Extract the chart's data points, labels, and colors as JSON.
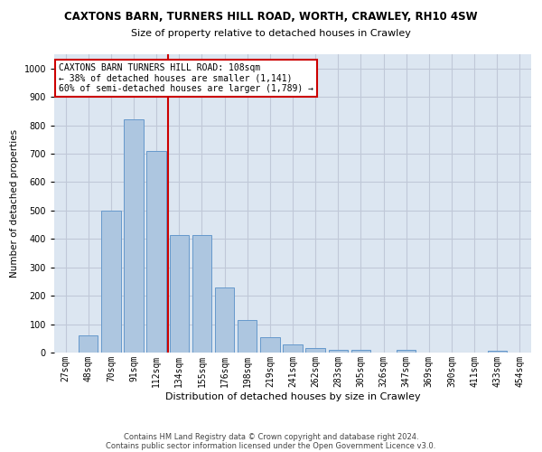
{
  "title": "CAXTONS BARN, TURNERS HILL ROAD, WORTH, CRAWLEY, RH10 4SW",
  "subtitle": "Size of property relative to detached houses in Crawley",
  "xlabel": "Distribution of detached houses by size in Crawley",
  "ylabel": "Number of detached properties",
  "footer1": "Contains HM Land Registry data © Crown copyright and database right 2024.",
  "footer2": "Contains public sector information licensed under the Open Government Licence v3.0.",
  "categories": [
    "27sqm",
    "48sqm",
    "70sqm",
    "91sqm",
    "112sqm",
    "134sqm",
    "155sqm",
    "176sqm",
    "198sqm",
    "219sqm",
    "241sqm",
    "262sqm",
    "283sqm",
    "305sqm",
    "326sqm",
    "347sqm",
    "369sqm",
    "390sqm",
    "411sqm",
    "433sqm",
    "454sqm"
  ],
  "values": [
    0,
    60,
    500,
    820,
    710,
    415,
    415,
    230,
    115,
    55,
    30,
    15,
    10,
    10,
    0,
    10,
    0,
    0,
    0,
    5,
    0
  ],
  "bar_color": "#adc6e0",
  "bar_edge_color": "#6699cc",
  "vline_x": 4.5,
  "vline_color": "#cc0000",
  "annotation_text": "CAXTONS BARN TURNERS HILL ROAD: 108sqm\n← 38% of detached houses are smaller (1,141)\n60% of semi-detached houses are larger (1,789) →",
  "annotation_box_color": "#ffffff",
  "annotation_box_edge": "#cc0000",
  "ylim": [
    0,
    1050
  ],
  "yticks": [
    0,
    100,
    200,
    300,
    400,
    500,
    600,
    700,
    800,
    900,
    1000
  ],
  "grid_color": "#c0c8d8",
  "background_color": "#dce6f1",
  "title_fontsize": 8.5,
  "subtitle_fontsize": 8,
  "tick_fontsize": 7,
  "ylabel_fontsize": 7.5,
  "xlabel_fontsize": 8,
  "annotation_fontsize": 7,
  "footer_fontsize": 6
}
